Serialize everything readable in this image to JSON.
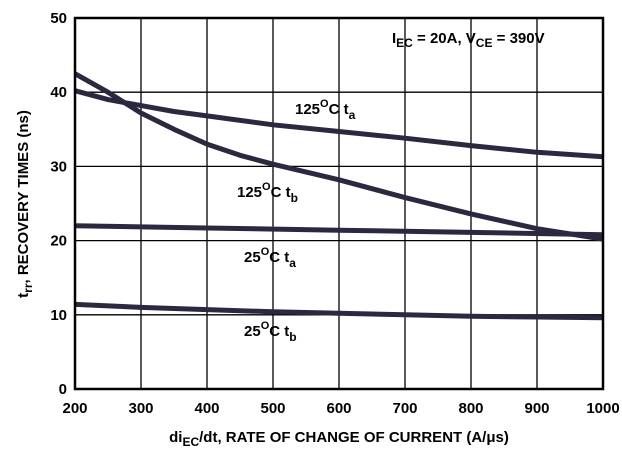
{
  "chart_data": {
    "type": "line",
    "xlabel": {
      "pre": "di",
      "sub": "EC",
      "post": "/dt, RATE OF CHANGE OF CURRENT (A/μs)"
    },
    "ylabel": {
      "pre": "t",
      "sub": "rr",
      "post": ", RECOVERY TIMES (ns)"
    },
    "xlim": [
      200,
      1000
    ],
    "ylim": [
      0,
      50
    ],
    "xticks": [
      200,
      300,
      400,
      500,
      600,
      700,
      800,
      900,
      1000
    ],
    "yticks": [
      0,
      10,
      20,
      30,
      40,
      50
    ],
    "grid": true,
    "condition": {
      "i": "I",
      "i_sub": "EC",
      "i_val": " = 20A, V",
      "v_sub": "CE",
      "v_val": " = 390V"
    },
    "series": [
      {
        "name": "125C ta",
        "label": {
          "pre": "125",
          "sup": "O",
          "mid": "C t",
          "sub": "a"
        },
        "x": [
          200,
          250,
          300,
          350,
          400,
          500,
          600,
          700,
          800,
          900,
          1000
        ],
        "y": [
          40.2,
          39.0,
          38.2,
          37.4,
          36.8,
          35.6,
          34.7,
          33.8,
          32.8,
          31.9,
          31.3
        ]
      },
      {
        "name": "125C tb",
        "label": {
          "pre": "125",
          "sup": "O",
          "mid": "C t",
          "sub": "b"
        },
        "x": [
          200,
          250,
          300,
          350,
          400,
          450,
          500,
          600,
          700,
          800,
          900,
          1000
        ],
        "y": [
          42.5,
          40.0,
          37.2,
          35.0,
          33.0,
          31.5,
          30.3,
          28.2,
          25.8,
          23.6,
          21.6,
          20.2
        ]
      },
      {
        "name": "25C ta",
        "label": {
          "pre": "25",
          "sup": "O",
          "mid": "C t",
          "sub": "a"
        },
        "x": [
          200,
          400,
          600,
          800,
          1000
        ],
        "y": [
          22.0,
          21.7,
          21.4,
          21.1,
          20.8
        ]
      },
      {
        "name": "25C tb",
        "label": {
          "pre": "25",
          "sup": "O",
          "mid": "C t",
          "sub": "b"
        },
        "x": [
          200,
          300,
          400,
          500,
          600,
          700,
          800,
          900,
          1000
        ],
        "y": [
          11.4,
          11.0,
          10.7,
          10.4,
          10.2,
          10.0,
          9.8,
          9.7,
          9.6
        ]
      }
    ]
  }
}
